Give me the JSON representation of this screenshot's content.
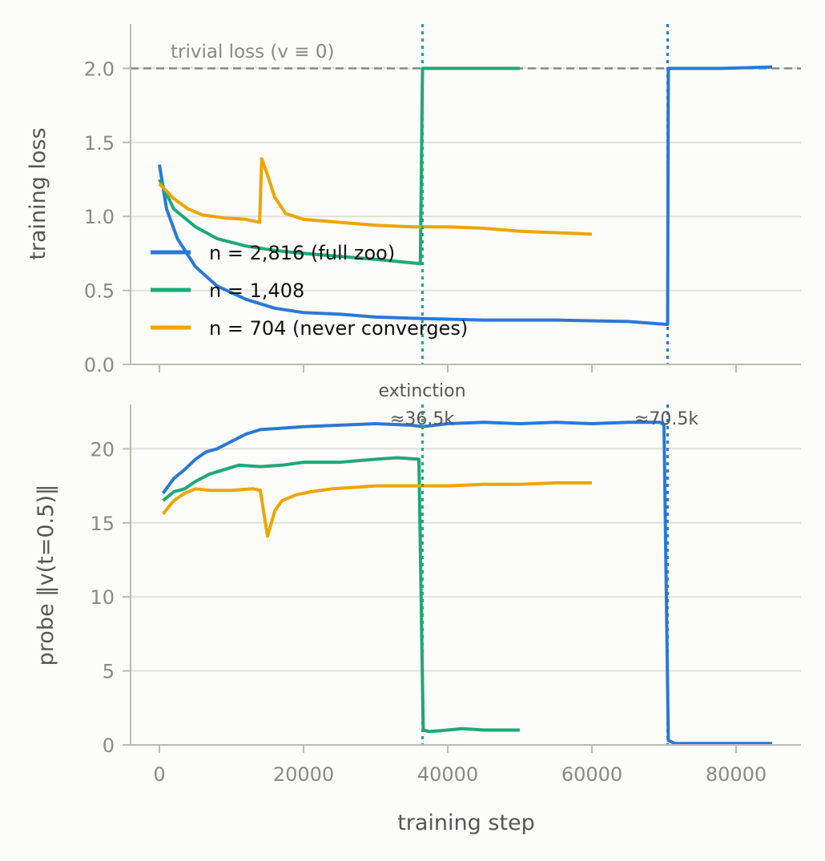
{
  "colors": {
    "background": "#fcfcf9",
    "grid": "#e0e0da",
    "axis": "#bbbbb2",
    "trivial_line": "#888888"
  },
  "chart_data": [
    {
      "type": "line",
      "xlim": [
        -4000,
        89000
      ],
      "ylim": [
        0,
        2.3
      ],
      "yticks": [
        0.0,
        0.5,
        1.0,
        1.5,
        2.0
      ],
      "ytick_labels": [
        "0.0",
        "0.5",
        "1.0",
        "1.5",
        "2.0"
      ],
      "xticks": [
        0,
        20000,
        40000,
        60000,
        80000
      ],
      "ylabel": "training loss",
      "grid": "horizontal",
      "reference_line": {
        "y": 2.0,
        "style": "dashed",
        "label": "trivial loss (v ≡ 0)"
      },
      "legend": {
        "placement": "center-left"
      },
      "series": [
        {
          "name": "n = 2,816 (full zoo)",
          "color": "#2a78d8",
          "x": [
            0,
            1000,
            2500,
            5000,
            8000,
            12000,
            16000,
            20000,
            25000,
            30000,
            36500,
            45000,
            55000,
            65000,
            70500,
            70600,
            72000,
            78000,
            85000
          ],
          "y": [
            1.35,
            1.05,
            0.85,
            0.66,
            0.53,
            0.44,
            0.38,
            0.35,
            0.34,
            0.32,
            0.31,
            0.3,
            0.3,
            0.29,
            0.27,
            2.0,
            2.0,
            2.0,
            2.01
          ]
        },
        {
          "name": "n = 1,408",
          "color": "#1aaa78",
          "x": [
            0,
            2000,
            5000,
            8000,
            12000,
            16000,
            20000,
            25000,
            30000,
            36200,
            36500,
            38000,
            44000,
            50000
          ],
          "y": [
            1.25,
            1.05,
            0.93,
            0.85,
            0.8,
            0.77,
            0.75,
            0.73,
            0.71,
            0.68,
            2.0,
            2.0,
            2.0,
            2.0
          ]
        },
        {
          "name": "n = 704 (never converges)",
          "color": "#eea500",
          "x": [
            0,
            2000,
            4000,
            6000,
            9000,
            12000,
            13900,
            14200,
            15000,
            16000,
            17500,
            20000,
            25000,
            30000,
            35000,
            40000,
            45000,
            50000,
            55000,
            60000
          ],
          "y": [
            1.22,
            1.12,
            1.05,
            1.01,
            0.99,
            0.98,
            0.96,
            1.39,
            1.28,
            1.13,
            1.02,
            0.98,
            0.96,
            0.94,
            0.93,
            0.93,
            0.92,
            0.9,
            0.89,
            0.88
          ]
        }
      ],
      "vlines": [
        {
          "x": 36500,
          "color": "#1aaa78",
          "style": "dotted"
        },
        {
          "x": 70500,
          "color": "#2a78d8",
          "style": "dotted"
        }
      ]
    },
    {
      "type": "line",
      "xlim": [
        -4000,
        89000
      ],
      "ylim": [
        0,
        23
      ],
      "yticks": [
        0,
        5,
        10,
        15,
        20
      ],
      "ytick_labels": [
        "0",
        "5",
        "10",
        "15",
        "20"
      ],
      "xticks": [
        0,
        20000,
        40000,
        60000,
        80000
      ],
      "xtick_labels": [
        "0",
        "20000",
        "40000",
        "60000",
        "80000"
      ],
      "xlabel": "training step",
      "ylabel": "probe ‖v(t=0.5)‖",
      "grid": "horizontal",
      "annotations": [
        {
          "text": "extinction",
          "x": 36500
        },
        {
          "text": "≈36.5k",
          "x": 36500
        },
        {
          "text": "≈70.5k",
          "x": 70500
        }
      ],
      "series": [
        {
          "name": "n = 2,816 (full zoo)",
          "color": "#2a78d8",
          "x": [
            500,
            2000,
            3500,
            5000,
            6500,
            8000,
            10000,
            12000,
            14000,
            17000,
            20000,
            25000,
            30000,
            35000,
            36500,
            40000,
            45000,
            50000,
            55000,
            60000,
            65000,
            69500,
            70000,
            70600,
            71500,
            75000,
            85000
          ],
          "y": [
            17.0,
            18.0,
            18.6,
            19.3,
            19.8,
            20.0,
            20.5,
            21.0,
            21.3,
            21.4,
            21.5,
            21.6,
            21.7,
            21.6,
            21.5,
            21.7,
            21.8,
            21.7,
            21.8,
            21.7,
            21.8,
            21.8,
            21.6,
            0.3,
            0.1,
            0.1,
            0.1
          ]
        },
        {
          "name": "n = 1,408",
          "color": "#1aaa78",
          "x": [
            500,
            2000,
            3500,
            5000,
            7000,
            9000,
            11000,
            14000,
            17000,
            20000,
            25000,
            30000,
            33000,
            36000,
            36600,
            37500,
            40000,
            42000,
            45000,
            50000
          ],
          "y": [
            16.5,
            17.1,
            17.3,
            17.8,
            18.3,
            18.6,
            18.9,
            18.8,
            18.9,
            19.1,
            19.1,
            19.3,
            19.4,
            19.3,
            1.0,
            0.9,
            1.0,
            1.1,
            1.0,
            1.0
          ]
        },
        {
          "name": "n = 704 (never converges)",
          "color": "#eea500",
          "x": [
            500,
            2000,
            3500,
            5000,
            7000,
            10000,
            13000,
            14000,
            15000,
            16000,
            17000,
            19000,
            21000,
            24000,
            27000,
            30000,
            35000,
            40000,
            45000,
            50000,
            55000,
            60000
          ],
          "y": [
            15.6,
            16.5,
            17.0,
            17.3,
            17.2,
            17.2,
            17.3,
            17.2,
            14.1,
            15.8,
            16.5,
            16.9,
            17.1,
            17.3,
            17.4,
            17.5,
            17.5,
            17.5,
            17.6,
            17.6,
            17.7,
            17.7
          ]
        }
      ],
      "vlines": [
        {
          "x": 36500,
          "color": "#1aaa78",
          "style": "dotted"
        },
        {
          "x": 70500,
          "color": "#2a78d8",
          "style": "dotted"
        }
      ]
    }
  ]
}
